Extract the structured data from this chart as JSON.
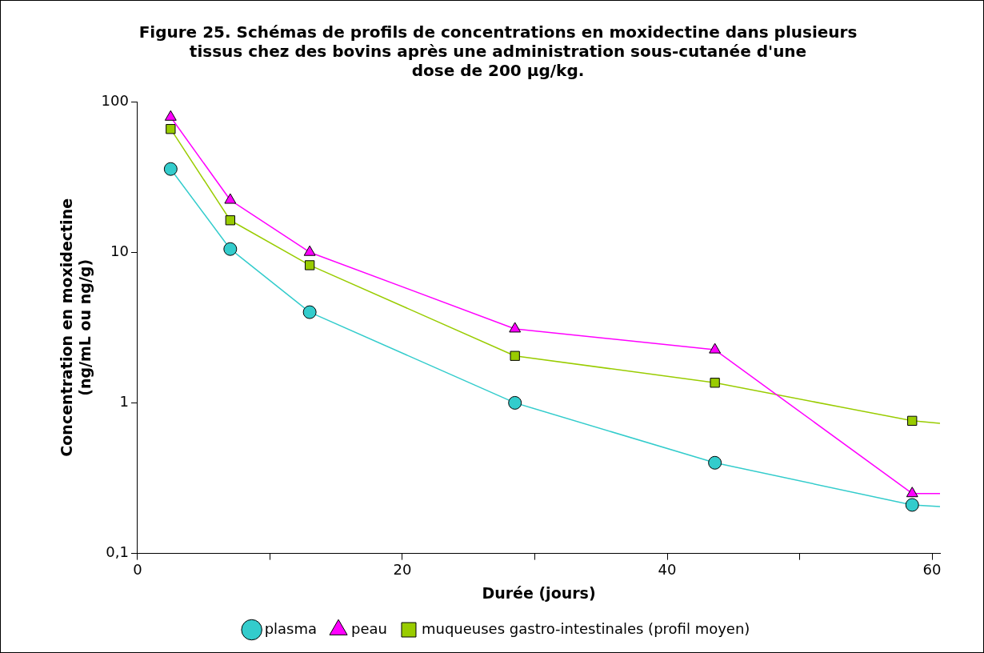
{
  "chart_data": {
    "type": "line",
    "title": "Figure 25. Schémas de profils de concentrations en moxidectine dans plusieurs\ntissus chez des bovins après une administration sous-cutanée d'une\ndose de 200 µg/kg.",
    "xlabel": "Durée (jours)",
    "ylabel": "Concentration en moxidectine\n(ng/mL ou ng/g)",
    "x": [
      2.5,
      7.0,
      13.0,
      28.5,
      43.6,
      58.5,
      60.6
    ],
    "series": [
      {
        "name": "plasma",
        "color": "#33cccc",
        "marker": "circle",
        "values": [
          35.7,
          10.5,
          4.0,
          1.0,
          0.4,
          0.21,
          0.205
        ]
      },
      {
        "name": "peau",
        "color": "#ff00ff",
        "marker": "triangle",
        "values": [
          79,
          22.2,
          10,
          3.1,
          2.25,
          0.25,
          0.25
        ]
      },
      {
        "name": "muqueuses gastro-intestinales (profil moyen)",
        "color": "#99cc00",
        "marker": "square",
        "values": [
          65.8,
          16.3,
          8.2,
          2.05,
          1.36,
          0.76,
          0.73
        ]
      }
    ],
    "log": "y",
    "xlim": [
      0,
      60.6
    ],
    "xticks": [
      0,
      {
        "value": 10,
        "label": null
      },
      20,
      {
        "value": 30,
        "label": null
      },
      40,
      {
        "value": 50,
        "label": null
      },
      60
    ],
    "ylim": [
      0.1,
      100
    ],
    "yticks": [
      {
        "value": 0.1,
        "label": "0,1"
      },
      1,
      10,
      100
    ],
    "grid": false,
    "legend": "bottom"
  }
}
